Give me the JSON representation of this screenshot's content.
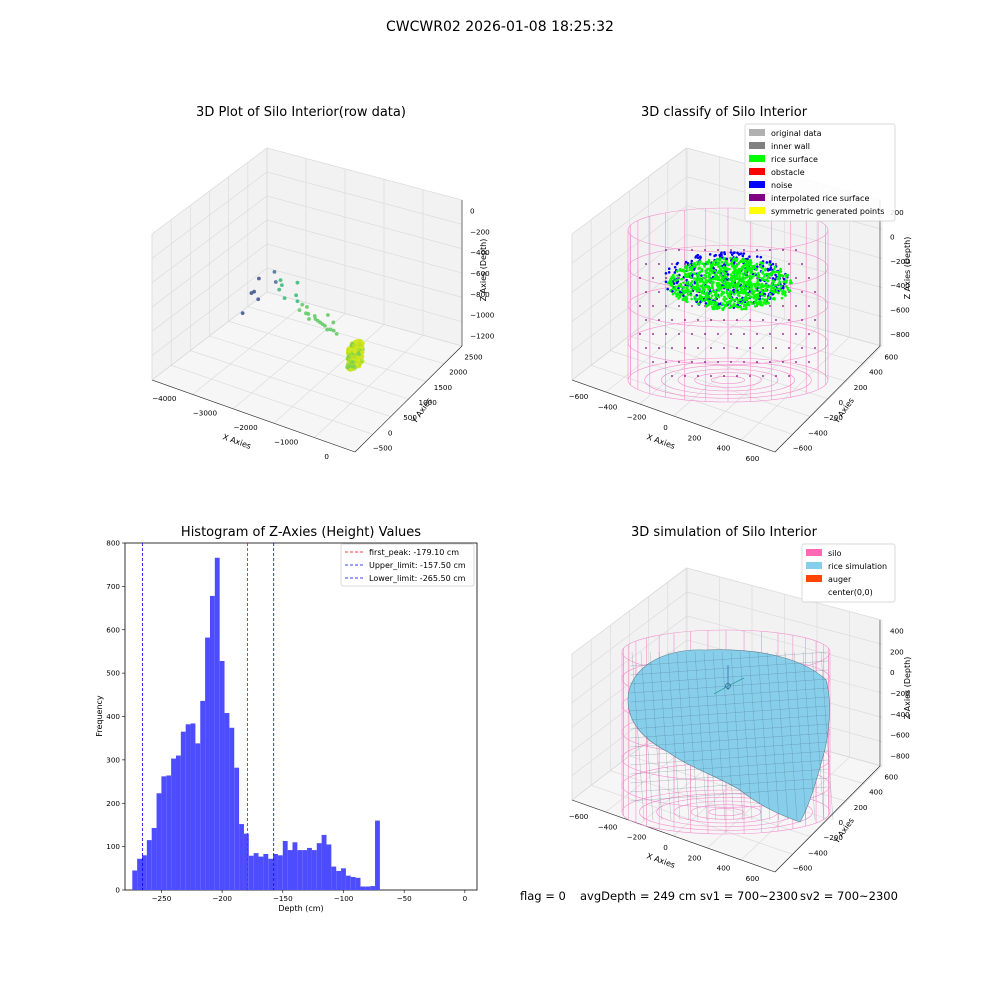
{
  "figure": {
    "suptitle": "CWCWR02 2026-01-08 18:25:32",
    "footer": {
      "flag": "flag = 0",
      "avg_depth": "avgDepth = 249 cm",
      "sv1": "sv1 = 700~2300",
      "sv2": "sv2 = 700~2300"
    }
  },
  "colors": {
    "hist_bar": "#4d4dff",
    "first_peak": "#ff0000",
    "limits": "#0000ff",
    "rice_surface": "#00ff00",
    "noise": "#0000ff",
    "silo": "#ff69b4",
    "rice_sim": "#87ceeb",
    "auger": "#ff4500",
    "interpolated": "#800080"
  },
  "chart_data": [
    {
      "type": "scatter3d",
      "title": "3D Plot of Silo Interior(row data)",
      "xlabel": "X Axies",
      "ylabel": "Y Axies",
      "zlabel": "Z Axies (Depth)",
      "xticks": [
        "−4000",
        "−3000",
        "−2000",
        "−1000",
        "0"
      ],
      "yticks": [
        "−500",
        "0",
        "500",
        "1000",
        "1500",
        "2000",
        "2500"
      ],
      "zticks": [
        "0",
        "−200",
        "−400",
        "−600",
        "−800",
        "−1000",
        "−1200"
      ],
      "cluster": {
        "x": [
          -350,
          -150
        ],
        "y": [
          0,
          400
        ],
        "z": [
          -800,
          -600
        ],
        "color_range": [
          "#d4e61c",
          "#7ad151"
        ]
      },
      "points": [
        [
          -4200,
          2100,
          -980
        ],
        [
          -4150,
          1900,
          -1050
        ],
        [
          -4100,
          1500,
          -1150
        ],
        [
          -4050,
          1700,
          -1000
        ],
        [
          -3900,
          2200,
          -900
        ],
        [
          -3800,
          1600,
          -1000
        ],
        [
          -3700,
          2000,
          -920
        ],
        [
          -3500,
          1900,
          -850
        ],
        [
          -3300,
          1700,
          -820
        ],
        [
          -3200,
          1500,
          -800
        ],
        [
          -3000,
          1800,
          -780
        ],
        [
          -2900,
          1300,
          -790
        ],
        [
          -2700,
          1400,
          -760
        ],
        [
          -2500,
          1200,
          -740
        ],
        [
          -2300,
          1100,
          -720
        ],
        [
          -2200,
          900,
          -710
        ],
        [
          -2100,
          1000,
          -690
        ],
        [
          -2000,
          850,
          -700
        ],
        [
          -1900,
          800,
          -680
        ],
        [
          -1800,
          700,
          -690
        ],
        [
          -1700,
          750,
          -660
        ],
        [
          -1600,
          650,
          -650
        ],
        [
          -1500,
          600,
          -640
        ],
        [
          -1400,
          550,
          -630
        ],
        [
          -1300,
          500,
          -620
        ],
        [
          -1200,
          450,
          -610
        ],
        [
          -1100,
          400,
          -620
        ],
        [
          -1000,
          380,
          -600
        ],
        [
          -900,
          350,
          -590
        ],
        [
          -800,
          320,
          -600
        ],
        [
          -1500,
          900,
          -660
        ],
        [
          -1200,
          700,
          -640
        ]
      ]
    },
    {
      "type": "scatter3d",
      "title": "3D classify of Silo Interior",
      "xlabel": "X Axies",
      "ylabel": "Y Axies",
      "zlabel": "Z Axies (Depth)",
      "xticks": [
        "−600",
        "−400",
        "−200",
        "0",
        "200",
        "400",
        "600"
      ],
      "yticks": [
        "−600",
        "−400",
        "−200",
        "0",
        "200",
        "400",
        "600"
      ],
      "zticks": [
        "200",
        "0",
        "−200",
        "−400",
        "−600",
        "−800"
      ],
      "legend_position": "upper right",
      "legend": [
        {
          "label": "original data",
          "color": "#b0b0b0"
        },
        {
          "label": "inner wall",
          "color": "#808080"
        },
        {
          "label": "rice surface",
          "color": "#00ff00"
        },
        {
          "label": "obstacle",
          "color": "#ff0000"
        },
        {
          "label": "noise",
          "color": "#0000ff"
        },
        {
          "label": "interpolated rice surface",
          "color": "#800080"
        },
        {
          "label": "symmetric generated points",
          "color": "#ffff00"
        }
      ]
    },
    {
      "type": "bar",
      "title": "Histogram of Z-Axies (Height) Values",
      "xlabel": "Depth (cm)",
      "ylabel": "Frequency",
      "xlim": [
        -280,
        10
      ],
      "ylim": [
        0,
        800
      ],
      "xticks": [
        -250,
        -200,
        -150,
        -100,
        -50,
        0
      ],
      "yticks": [
        0,
        100,
        200,
        300,
        400,
        500,
        600,
        700,
        800
      ],
      "bin_width": 4,
      "bin_start": -274,
      "values": [
        45,
        72,
        80,
        115,
        143,
        223,
        262,
        264,
        303,
        310,
        365,
        382,
        384,
        338,
        436,
        582,
        678,
        766,
        528,
        408,
        374,
        282,
        152,
        130,
        79,
        85,
        77,
        83,
        72,
        83,
        80,
        113,
        92,
        110,
        92,
        92,
        97,
        92,
        108,
        127,
        105,
        54,
        44,
        50,
        33,
        30,
        28,
        8,
        8,
        9,
        160
      ],
      "vlines": [
        {
          "x": -179.1,
          "label": "first_peak: -179.10 cm",
          "color": "#ff0000"
        },
        {
          "x": -157.5,
          "label": "Upper_limit: -157.50 cm",
          "color": "#0000ff"
        },
        {
          "x": -265.5,
          "label": "Lower_limit: -265.50 cm",
          "color": "#0000ff"
        }
      ],
      "legend_position": "upper right"
    },
    {
      "type": "surface3d",
      "title": "3D simulation of Silo Interior",
      "xlabel": "X Axies",
      "ylabel": "Y Axies",
      "zlabel": "Z Axies (Depth)",
      "xticks": [
        "−600",
        "−400",
        "−200",
        "0",
        "200",
        "400",
        "600"
      ],
      "yticks": [
        "−600",
        "−400",
        "−200",
        "0",
        "200",
        "400",
        "600"
      ],
      "zticks": [
        "400",
        "200",
        "0",
        "−200",
        "−400",
        "−600",
        "−800"
      ],
      "legend_position": "upper right",
      "legend": [
        {
          "label": "silo",
          "color": "#ff69b4"
        },
        {
          "label": "rice simulation",
          "color": "#87ceeb"
        },
        {
          "label": "auger",
          "color": "#ff4500"
        },
        {
          "label": "center(0,0)",
          "color": "#ffffff"
        }
      ]
    }
  ]
}
